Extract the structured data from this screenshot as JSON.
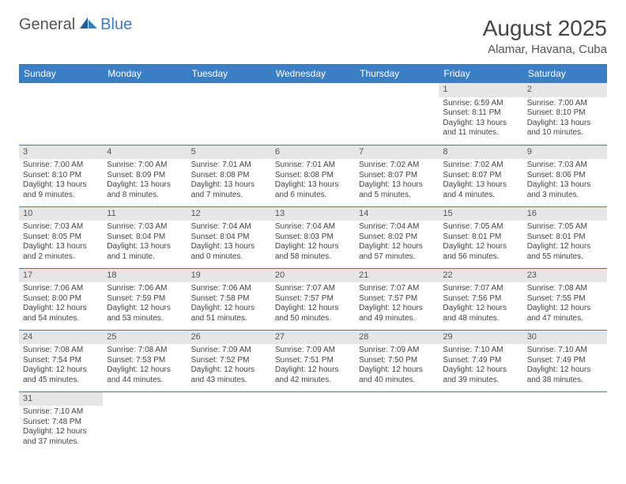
{
  "brand": {
    "part1": "General",
    "part2": "Blue"
  },
  "title": "August 2025",
  "location": "Alamar, Havana, Cuba",
  "colors": {
    "header_bg": "#3a7fc4",
    "header_text": "#ffffff",
    "daynum_bg": "#e6e6e6",
    "rule": "#3a7fc4",
    "text": "#444444"
  },
  "weekdays": [
    "Sunday",
    "Monday",
    "Tuesday",
    "Wednesday",
    "Thursday",
    "Friday",
    "Saturday"
  ],
  "weeks": [
    [
      null,
      null,
      null,
      null,
      null,
      {
        "n": "1",
        "sunrise": "Sunrise: 6:59 AM",
        "sunset": "Sunset: 8:11 PM",
        "daylight": "Daylight: 13 hours and 11 minutes."
      },
      {
        "n": "2",
        "sunrise": "Sunrise: 7:00 AM",
        "sunset": "Sunset: 8:10 PM",
        "daylight": "Daylight: 13 hours and 10 minutes."
      }
    ],
    [
      {
        "n": "3",
        "sunrise": "Sunrise: 7:00 AM",
        "sunset": "Sunset: 8:10 PM",
        "daylight": "Daylight: 13 hours and 9 minutes."
      },
      {
        "n": "4",
        "sunrise": "Sunrise: 7:00 AM",
        "sunset": "Sunset: 8:09 PM",
        "daylight": "Daylight: 13 hours and 8 minutes."
      },
      {
        "n": "5",
        "sunrise": "Sunrise: 7:01 AM",
        "sunset": "Sunset: 8:08 PM",
        "daylight": "Daylight: 13 hours and 7 minutes."
      },
      {
        "n": "6",
        "sunrise": "Sunrise: 7:01 AM",
        "sunset": "Sunset: 8:08 PM",
        "daylight": "Daylight: 13 hours and 6 minutes."
      },
      {
        "n": "7",
        "sunrise": "Sunrise: 7:02 AM",
        "sunset": "Sunset: 8:07 PM",
        "daylight": "Daylight: 13 hours and 5 minutes."
      },
      {
        "n": "8",
        "sunrise": "Sunrise: 7:02 AM",
        "sunset": "Sunset: 8:07 PM",
        "daylight": "Daylight: 13 hours and 4 minutes."
      },
      {
        "n": "9",
        "sunrise": "Sunrise: 7:03 AM",
        "sunset": "Sunset: 8:06 PM",
        "daylight": "Daylight: 13 hours and 3 minutes."
      }
    ],
    [
      {
        "n": "10",
        "sunrise": "Sunrise: 7:03 AM",
        "sunset": "Sunset: 8:05 PM",
        "daylight": "Daylight: 13 hours and 2 minutes."
      },
      {
        "n": "11",
        "sunrise": "Sunrise: 7:03 AM",
        "sunset": "Sunset: 8:04 PM",
        "daylight": "Daylight: 13 hours and 1 minute."
      },
      {
        "n": "12",
        "sunrise": "Sunrise: 7:04 AM",
        "sunset": "Sunset: 8:04 PM",
        "daylight": "Daylight: 13 hours and 0 minutes."
      },
      {
        "n": "13",
        "sunrise": "Sunrise: 7:04 AM",
        "sunset": "Sunset: 8:03 PM",
        "daylight": "Daylight: 12 hours and 58 minutes."
      },
      {
        "n": "14",
        "sunrise": "Sunrise: 7:04 AM",
        "sunset": "Sunset: 8:02 PM",
        "daylight": "Daylight: 12 hours and 57 minutes."
      },
      {
        "n": "15",
        "sunrise": "Sunrise: 7:05 AM",
        "sunset": "Sunset: 8:01 PM",
        "daylight": "Daylight: 12 hours and 56 minutes."
      },
      {
        "n": "16",
        "sunrise": "Sunrise: 7:05 AM",
        "sunset": "Sunset: 8:01 PM",
        "daylight": "Daylight: 12 hours and 55 minutes."
      }
    ],
    [
      {
        "n": "17",
        "sunrise": "Sunrise: 7:06 AM",
        "sunset": "Sunset: 8:00 PM",
        "daylight": "Daylight: 12 hours and 54 minutes."
      },
      {
        "n": "18",
        "sunrise": "Sunrise: 7:06 AM",
        "sunset": "Sunset: 7:59 PM",
        "daylight": "Daylight: 12 hours and 53 minutes."
      },
      {
        "n": "19",
        "sunrise": "Sunrise: 7:06 AM",
        "sunset": "Sunset: 7:58 PM",
        "daylight": "Daylight: 12 hours and 51 minutes."
      },
      {
        "n": "20",
        "sunrise": "Sunrise: 7:07 AM",
        "sunset": "Sunset: 7:57 PM",
        "daylight": "Daylight: 12 hours and 50 minutes."
      },
      {
        "n": "21",
        "sunrise": "Sunrise: 7:07 AM",
        "sunset": "Sunset: 7:57 PM",
        "daylight": "Daylight: 12 hours and 49 minutes."
      },
      {
        "n": "22",
        "sunrise": "Sunrise: 7:07 AM",
        "sunset": "Sunset: 7:56 PM",
        "daylight": "Daylight: 12 hours and 48 minutes."
      },
      {
        "n": "23",
        "sunrise": "Sunrise: 7:08 AM",
        "sunset": "Sunset: 7:55 PM",
        "daylight": "Daylight: 12 hours and 47 minutes."
      }
    ],
    [
      {
        "n": "24",
        "sunrise": "Sunrise: 7:08 AM",
        "sunset": "Sunset: 7:54 PM",
        "daylight": "Daylight: 12 hours and 45 minutes."
      },
      {
        "n": "25",
        "sunrise": "Sunrise: 7:08 AM",
        "sunset": "Sunset: 7:53 PM",
        "daylight": "Daylight: 12 hours and 44 minutes."
      },
      {
        "n": "26",
        "sunrise": "Sunrise: 7:09 AM",
        "sunset": "Sunset: 7:52 PM",
        "daylight": "Daylight: 12 hours and 43 minutes."
      },
      {
        "n": "27",
        "sunrise": "Sunrise: 7:09 AM",
        "sunset": "Sunset: 7:51 PM",
        "daylight": "Daylight: 12 hours and 42 minutes."
      },
      {
        "n": "28",
        "sunrise": "Sunrise: 7:09 AM",
        "sunset": "Sunset: 7:50 PM",
        "daylight": "Daylight: 12 hours and 40 minutes."
      },
      {
        "n": "29",
        "sunrise": "Sunrise: 7:10 AM",
        "sunset": "Sunset: 7:49 PM",
        "daylight": "Daylight: 12 hours and 39 minutes."
      },
      {
        "n": "30",
        "sunrise": "Sunrise: 7:10 AM",
        "sunset": "Sunset: 7:49 PM",
        "daylight": "Daylight: 12 hours and 38 minutes."
      }
    ],
    [
      {
        "n": "31",
        "sunrise": "Sunrise: 7:10 AM",
        "sunset": "Sunset: 7:48 PM",
        "daylight": "Daylight: 12 hours and 37 minutes."
      },
      null,
      null,
      null,
      null,
      null,
      null
    ]
  ]
}
